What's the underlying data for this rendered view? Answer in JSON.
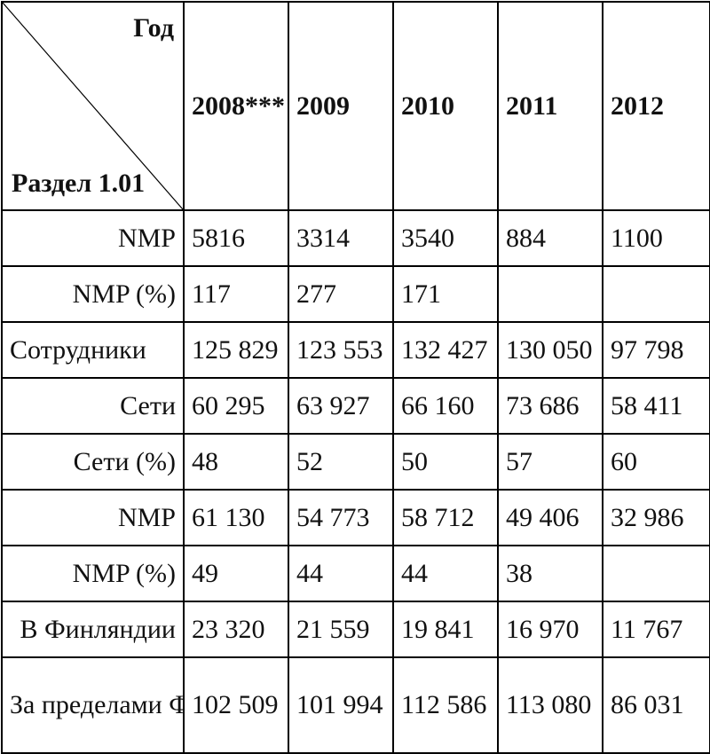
{
  "header": {
    "corner_top": "Год",
    "corner_bottom": "Раздел 1.01",
    "years": [
      "2008***",
      "2009",
      "2010",
      "2011",
      "2012"
    ]
  },
  "rows": [
    {
      "label": "NMP",
      "values": [
        "5816",
        "3314",
        "3540",
        "884",
        "1100"
      ]
    },
    {
      "label": "NMP (%)",
      "values": [
        "117",
        "277",
        "171",
        "",
        ""
      ]
    },
    {
      "label": "Сотрудники",
      "values": [
        "125 829",
        "123 553",
        "132 427",
        "130 050",
        "97 798"
      ]
    },
    {
      "label": "Сети",
      "values": [
        "60 295",
        "63 927",
        "66 160",
        "73 686",
        "58 411"
      ]
    },
    {
      "label": "Сети (%)",
      "values": [
        "48",
        "52",
        "50",
        "57",
        "60"
      ]
    },
    {
      "label": "NMP",
      "values": [
        "61 130",
        "54 773",
        "58 712",
        "49 406",
        "32 986"
      ]
    },
    {
      "label": "NMP (%)",
      "values": [
        "49",
        "44",
        "44",
        "38",
        ""
      ]
    },
    {
      "label": "В Финляндии",
      "values": [
        "23 320",
        "21 559",
        "19 841",
        "16 970",
        "11 767"
      ]
    },
    {
      "label": "За пределами Финляндии",
      "values": [
        "102 509",
        "101 994",
        "112 586",
        "113 080",
        "86 031"
      ]
    }
  ]
}
